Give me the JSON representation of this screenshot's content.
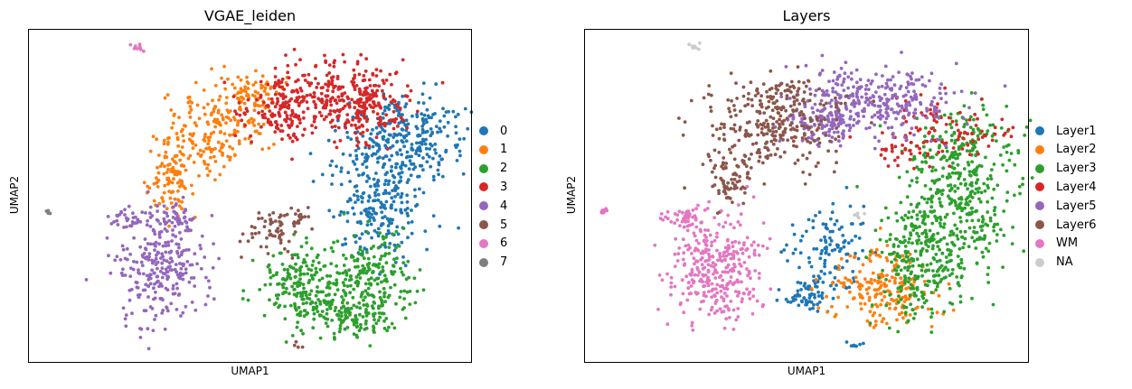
{
  "chart_data": [
    {
      "type": "scatter",
      "title": "VGAE_leiden",
      "xlabel": "UMAP1",
      "ylabel": "UMAP2",
      "xticks": [],
      "yticks": [],
      "grid": false,
      "legend_position": "right",
      "categories": [
        {
          "label": "0",
          "color": "#1f77b4"
        },
        {
          "label": "1",
          "color": "#ff7f0e"
        },
        {
          "label": "2",
          "color": "#2ca02c"
        },
        {
          "label": "3",
          "color": "#d62728"
        },
        {
          "label": "4",
          "color": "#9467bd"
        },
        {
          "label": "5",
          "color": "#8c564b"
        },
        {
          "label": "6",
          "color": "#e377c2"
        },
        {
          "label": "7",
          "color": "#7f7f7f"
        }
      ]
    },
    {
      "type": "scatter",
      "title": "Layers",
      "xlabel": "UMAP1",
      "ylabel": "UMAP2",
      "xticks": [],
      "yticks": [],
      "grid": false,
      "legend_position": "right",
      "categories": [
        {
          "label": "Layer1",
          "color": "#1f77b4"
        },
        {
          "label": "Layer2",
          "color": "#ff7f0e"
        },
        {
          "label": "Layer3",
          "color": "#2ca02c"
        },
        {
          "label": "Layer4",
          "color": "#d62728"
        },
        {
          "label": "Layer5",
          "color": "#9467bd"
        },
        {
          "label": "Layer6",
          "color": "#8c564b"
        },
        {
          "label": "WM",
          "color": "#e377c2"
        },
        {
          "label": "NA",
          "color": "#cccccc"
        }
      ]
    }
  ]
}
